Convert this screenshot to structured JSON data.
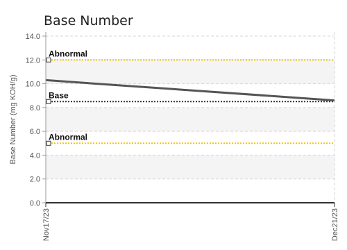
{
  "chart_data": {
    "type": "line",
    "title": "Base Number",
    "ylabel": "Base Number (mg KOH/g)",
    "xlabel": "",
    "ylim": [
      0,
      14
    ],
    "yticks": [
      "0.0",
      "2.0",
      "4.0",
      "6.0",
      "8.0",
      "10.0",
      "12.0",
      "14.0"
    ],
    "ytick_values": [
      0,
      2,
      4,
      6,
      8,
      10,
      12,
      14
    ],
    "x": [
      "Nov17/23",
      "Dec21/23"
    ],
    "series": [
      {
        "values": [
          10.3,
          8.6
        ],
        "color": "#555555"
      }
    ],
    "reference_lines": [
      {
        "label": "Abnormal",
        "value": 12.0,
        "color": "#f2c40f"
      },
      {
        "label": "Base",
        "value": 8.5,
        "color": "#333333"
      },
      {
        "label": "Abnormal",
        "value": 5.0,
        "color": "#f2c40f"
      }
    ],
    "grid": true,
    "shaded_bands": [
      [
        12,
        10
      ],
      [
        8,
        6
      ],
      [
        4,
        2
      ]
    ]
  }
}
